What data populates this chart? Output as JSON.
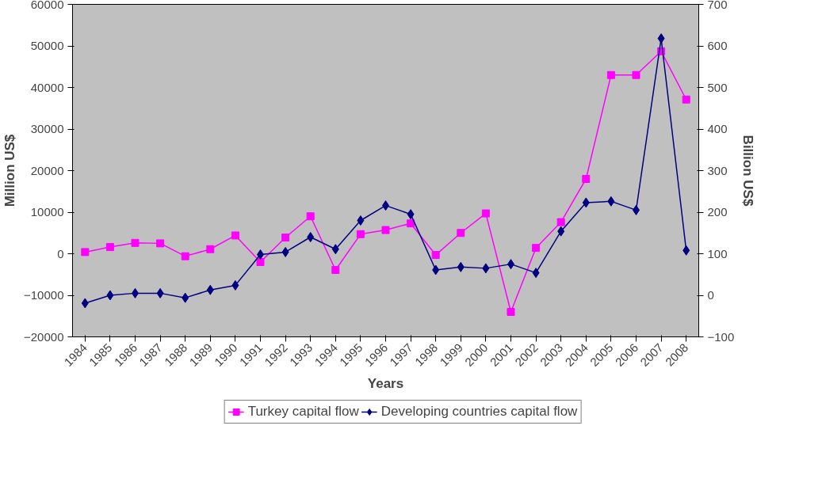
{
  "chart_data": {
    "type": "line",
    "xlabel": "Years",
    "ylabel": "Million US$",
    "y2label": "Billion US$",
    "categories": [
      "1984",
      "1985",
      "1986",
      "1987",
      "1988",
      "1989",
      "1990",
      "1991",
      "1992",
      "1993",
      "1994",
      "1995",
      "1996",
      "1997",
      "1998",
      "1999",
      "2000",
      "2001",
      "2002",
      "2003",
      "2004",
      "2005",
      "2006",
      "2007",
      "2008"
    ],
    "series": [
      {
        "name": "Turkey capital flow",
        "color": "#ff00ff",
        "marker": "square",
        "values": [
          400,
          1600,
          2600,
          2500,
          -600,
          1100,
          4400,
          -2000,
          3900,
          9000,
          -3900,
          4700,
          5700,
          7300,
          -300,
          5000,
          9700,
          -14000,
          1400,
          7600,
          18000,
          43000,
          43000,
          48700,
          37100
        ]
      },
      {
        "name": "Developing countries capital flow",
        "color": "#000080",
        "marker": "diamond",
        "axis": "y2",
        "values": [
          -19,
          0,
          5,
          5,
          -6,
          13,
          24,
          98,
          104,
          140,
          111,
          180,
          216,
          195,
          61,
          68,
          65,
          75,
          54,
          154,
          223,
          226,
          205,
          618,
          108
        ]
      }
    ],
    "ylim": [
      -20000,
      60000
    ],
    "yticks": [
      -20000,
      -10000,
      0,
      10000,
      20000,
      30000,
      40000,
      50000,
      60000
    ],
    "y2lim": [
      -100,
      700
    ],
    "y2ticks": [
      -100,
      0,
      100,
      200,
      300,
      400,
      500,
      600,
      700
    ],
    "grid": false,
    "legend": "bottom",
    "line_style": "solid"
  }
}
